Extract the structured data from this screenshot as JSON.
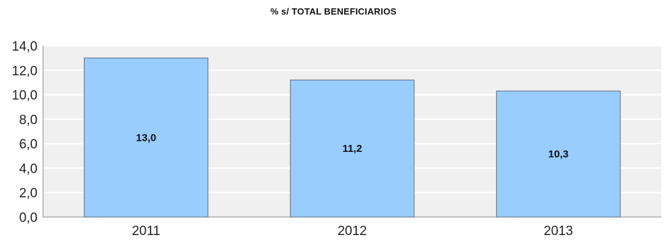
{
  "chart_data": {
    "type": "bar",
    "title": "% s/ TOTAL BENEFICIARIOS",
    "categories": [
      "2011",
      "2012",
      "2013"
    ],
    "values": [
      13.0,
      11.2,
      10.3
    ],
    "value_labels": [
      "13,0",
      "11,2",
      "10,3"
    ],
    "xlabel": "",
    "ylabel": "",
    "ylim": [
      0,
      14
    ],
    "yticks": [
      0,
      2,
      4,
      6,
      8,
      10,
      12,
      14
    ],
    "ytick_labels": [
      "0,0",
      "2,0",
      "4,0",
      "6,0",
      "8,0",
      "10,0",
      "12,0",
      "14,0"
    ],
    "grid": true,
    "legend": "none",
    "colors": {
      "bar_fill": "#99ccff",
      "bar_stroke": "#6b7f93",
      "plot_background": "#f0f0f0",
      "grid": "#ffffff",
      "axis": "#888888"
    }
  }
}
